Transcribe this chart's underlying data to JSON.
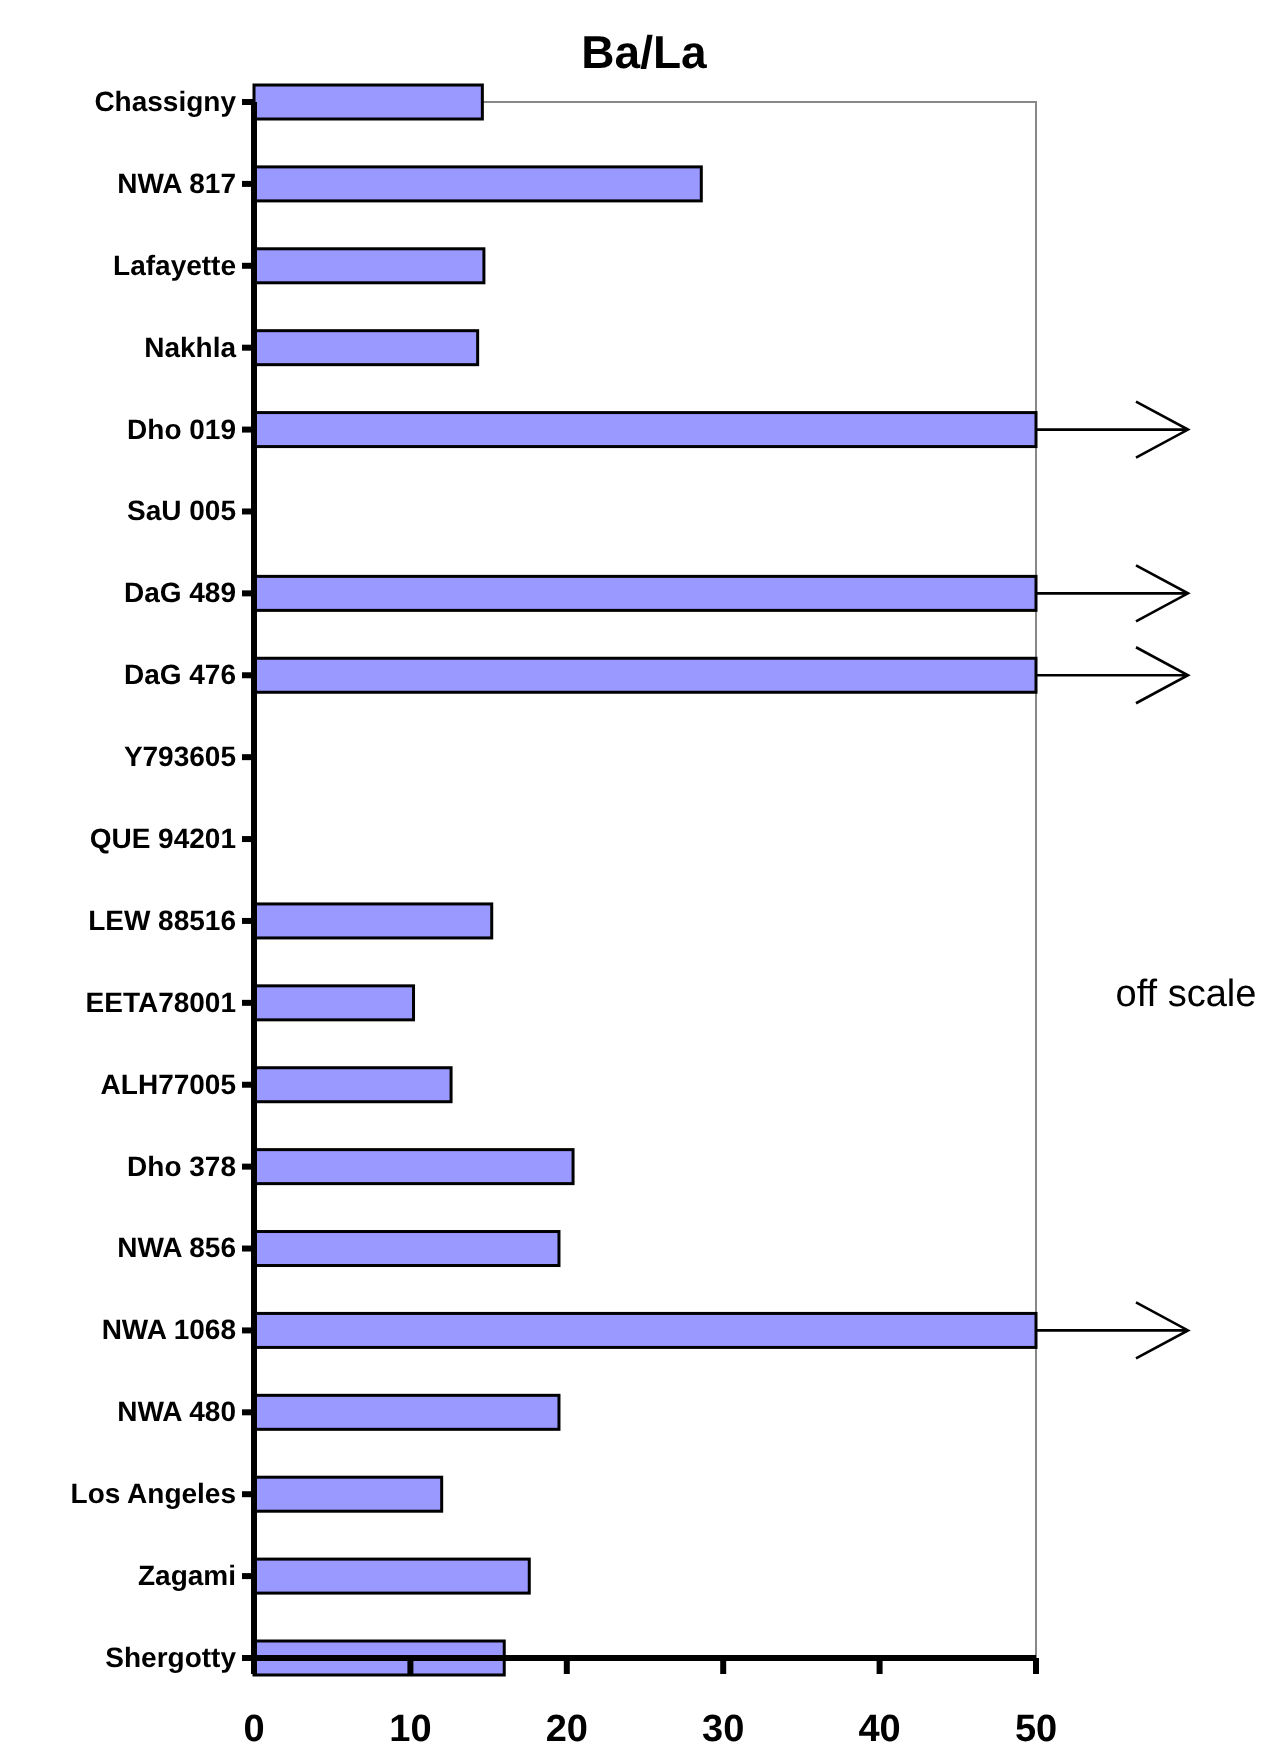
{
  "chart_data": {
    "type": "bar",
    "orientation": "horizontal",
    "title": "Ba/La",
    "categories": [
      "Chassigny",
      "NWA 817",
      "Lafayette",
      "Nakhla",
      "Dho 019",
      "SaU 005",
      "DaG 489",
      "DaG 476",
      "Y793605",
      "QUE 94201",
      "LEW 88516",
      "EETA78001",
      "ALH77005",
      "Dho 378",
      "NWA 856",
      "NWA 1068",
      "NWA 480",
      "Los Angeles",
      "Zagami",
      "Shergotty"
    ],
    "values": [
      14.6,
      28.6,
      14.7,
      14.3,
      50,
      null,
      50,
      50,
      null,
      null,
      15.2,
      10.2,
      12.6,
      20.4,
      19.5,
      50,
      19.5,
      12.0,
      17.6,
      16.0
    ],
    "color": "#9999ff",
    "xlim": [
      0,
      50
    ],
    "xticks": [
      0,
      10,
      20,
      30,
      40,
      50
    ],
    "grid": false,
    "annotations": [
      "off scale"
    ]
  }
}
